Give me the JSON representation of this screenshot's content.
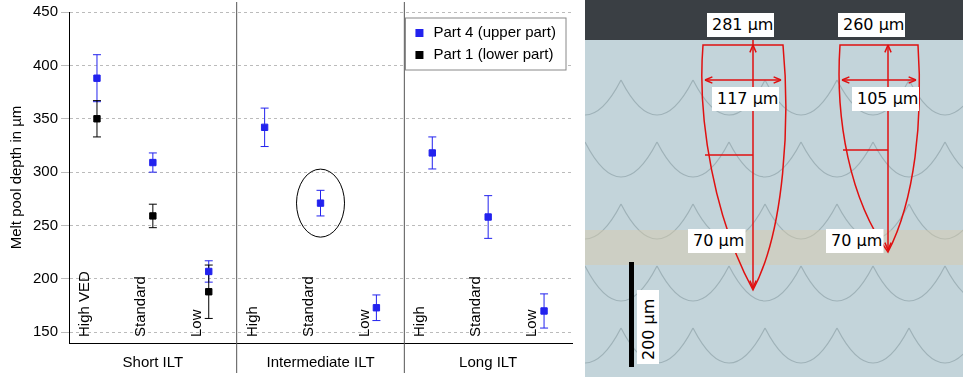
{
  "chart_data": {
    "type": "scatter",
    "y_label": "Melt pool depth in µm",
    "categories": [
      "High VED",
      "Standard",
      "Low",
      "High",
      "Standard",
      "Low",
      "High",
      "Standard",
      "Low"
    ],
    "groups": [
      "Short ILT",
      "Intermediate ILT",
      "Long ILT"
    ],
    "series": [
      {
        "name": "Part 4 (upper part)",
        "color": "#2222ee",
        "marker": "square",
        "values": [
          388,
          309,
          207,
          342,
          271,
          173,
          318,
          258,
          170
        ],
        "errors": [
          22,
          9,
          10,
          18,
          12,
          12,
          15,
          20,
          16
        ]
      },
      {
        "name": "Part 1 (lower part)",
        "color": "#000000",
        "marker": "square",
        "values": [
          350,
          259,
          188,
          null,
          null,
          null,
          null,
          null,
          null
        ],
        "errors": [
          17,
          11,
          25,
          null,
          null,
          null,
          null,
          null,
          null
        ]
      }
    ],
    "ylim": [
      140,
      450
    ],
    "yticks": [
      150,
      200,
      250,
      300,
      350,
      400,
      450
    ],
    "grid": true,
    "legend": "upper right"
  },
  "micrograph": {
    "pool_depths": [
      "281 µm",
      "260 µm"
    ],
    "pool_widths": [
      "117 µm",
      "105 µm"
    ],
    "layer_thickness": [
      "70 µm",
      "70 µm"
    ],
    "scale_bar": "200 µm"
  }
}
